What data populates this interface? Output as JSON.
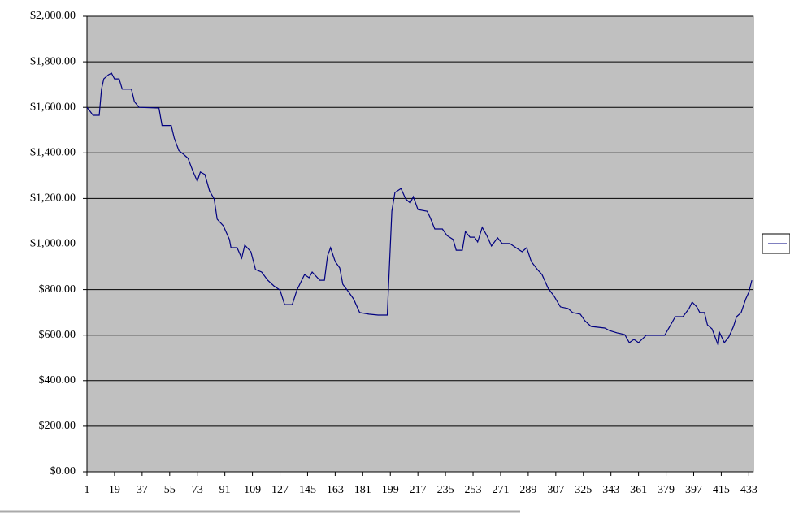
{
  "chart_data": {
    "type": "line",
    "x": [
      1,
      3,
      5,
      9,
      10.5,
      12,
      15,
      17,
      19,
      22,
      24,
      30,
      32,
      35,
      48,
      50,
      56,
      58,
      61,
      64,
      67,
      70,
      73,
      75,
      78,
      81,
      84,
      86,
      90,
      94,
      95,
      99,
      102,
      104,
      108,
      111,
      115,
      119,
      123,
      127,
      130,
      135,
      138,
      143,
      146,
      148,
      153,
      156,
      158,
      160,
      163,
      166,
      168,
      172,
      175,
      179,
      185,
      191,
      197,
      200,
      202,
      206,
      209,
      212,
      214,
      217,
      223,
      225,
      228,
      233,
      236,
      240,
      242,
      246,
      248,
      251,
      254,
      256,
      259,
      262,
      265,
      269,
      272,
      277,
      281,
      285,
      288,
      291,
      295,
      298,
      302,
      306,
      310,
      315,
      318,
      323,
      326,
      330,
      339,
      342,
      347,
      352,
      355,
      358,
      361,
      366,
      378,
      382,
      385,
      390,
      394,
      396,
      399,
      401,
      404,
      406,
      409,
      413,
      414,
      417,
      420,
      423,
      425,
      428,
      431,
      433,
      435
    ],
    "series": [
      {
        "color": "#000080",
        "values": [
          1600,
          1583,
          1565,
          1565,
          1680,
          1725,
          1743,
          1750,
          1725,
          1725,
          1680,
          1680,
          1625,
          1600,
          1597,
          1520,
          1520,
          1465,
          1410,
          1394,
          1376,
          1322,
          1276,
          1316,
          1305,
          1233,
          1198,
          1109,
          1080,
          1020,
          984,
          984,
          938,
          995,
          966,
          888,
          877,
          841,
          816,
          798,
          734,
          734,
          798,
          866,
          852,
          877,
          841,
          841,
          948,
          984,
          923,
          895,
          823,
          788,
          759,
          699,
          692,
          688,
          688,
          1144,
          1226,
          1244,
          1198,
          1180,
          1208,
          1151,
          1144,
          1116,
          1066,
          1066,
          1037,
          1020,
          973,
          973,
          1055,
          1030,
          1030,
          1009,
          1073,
          1037,
          991,
          1027,
          1002,
          1002,
          984,
          966,
          984,
          923,
          888,
          866,
          806,
          770,
          724,
          717,
          699,
          692,
          663,
          638,
          631,
          620,
          610,
          602,
          567,
          581,
          567,
          599,
          599,
          645,
          681,
          681,
          717,
          745,
          724,
          699,
          699,
          645,
          627,
          556,
          610,
          567,
          592,
          638,
          681,
          699,
          759,
          788,
          841
        ]
      }
    ],
    "xlim": [
      1,
      436
    ],
    "xticks": [
      1,
      19,
      37,
      55,
      73,
      91,
      109,
      127,
      145,
      163,
      181,
      199,
      217,
      235,
      253,
      271,
      289,
      307,
      325,
      343,
      361,
      379,
      397,
      415,
      433
    ],
    "ylim": [
      0,
      2000
    ],
    "yticks": [
      {
        "value": 0,
        "label": "$0.00"
      },
      {
        "value": 200,
        "label": "$200.00"
      },
      {
        "value": 400,
        "label": "$400.00"
      },
      {
        "value": 600,
        "label": "$600.00"
      },
      {
        "value": 800,
        "label": "$800.00"
      },
      {
        "value": 1000,
        "label": "$1,000.00"
      },
      {
        "value": 1200,
        "label": "$1,200.00"
      },
      {
        "value": 1400,
        "label": "$1,400.00"
      },
      {
        "value": 1600,
        "label": "$1,600.00"
      },
      {
        "value": 1800,
        "label": "$1,800.00"
      },
      {
        "value": 2000,
        "label": "$2,000.00"
      }
    ],
    "grid": true,
    "plot_background": "#c0c0c0"
  }
}
